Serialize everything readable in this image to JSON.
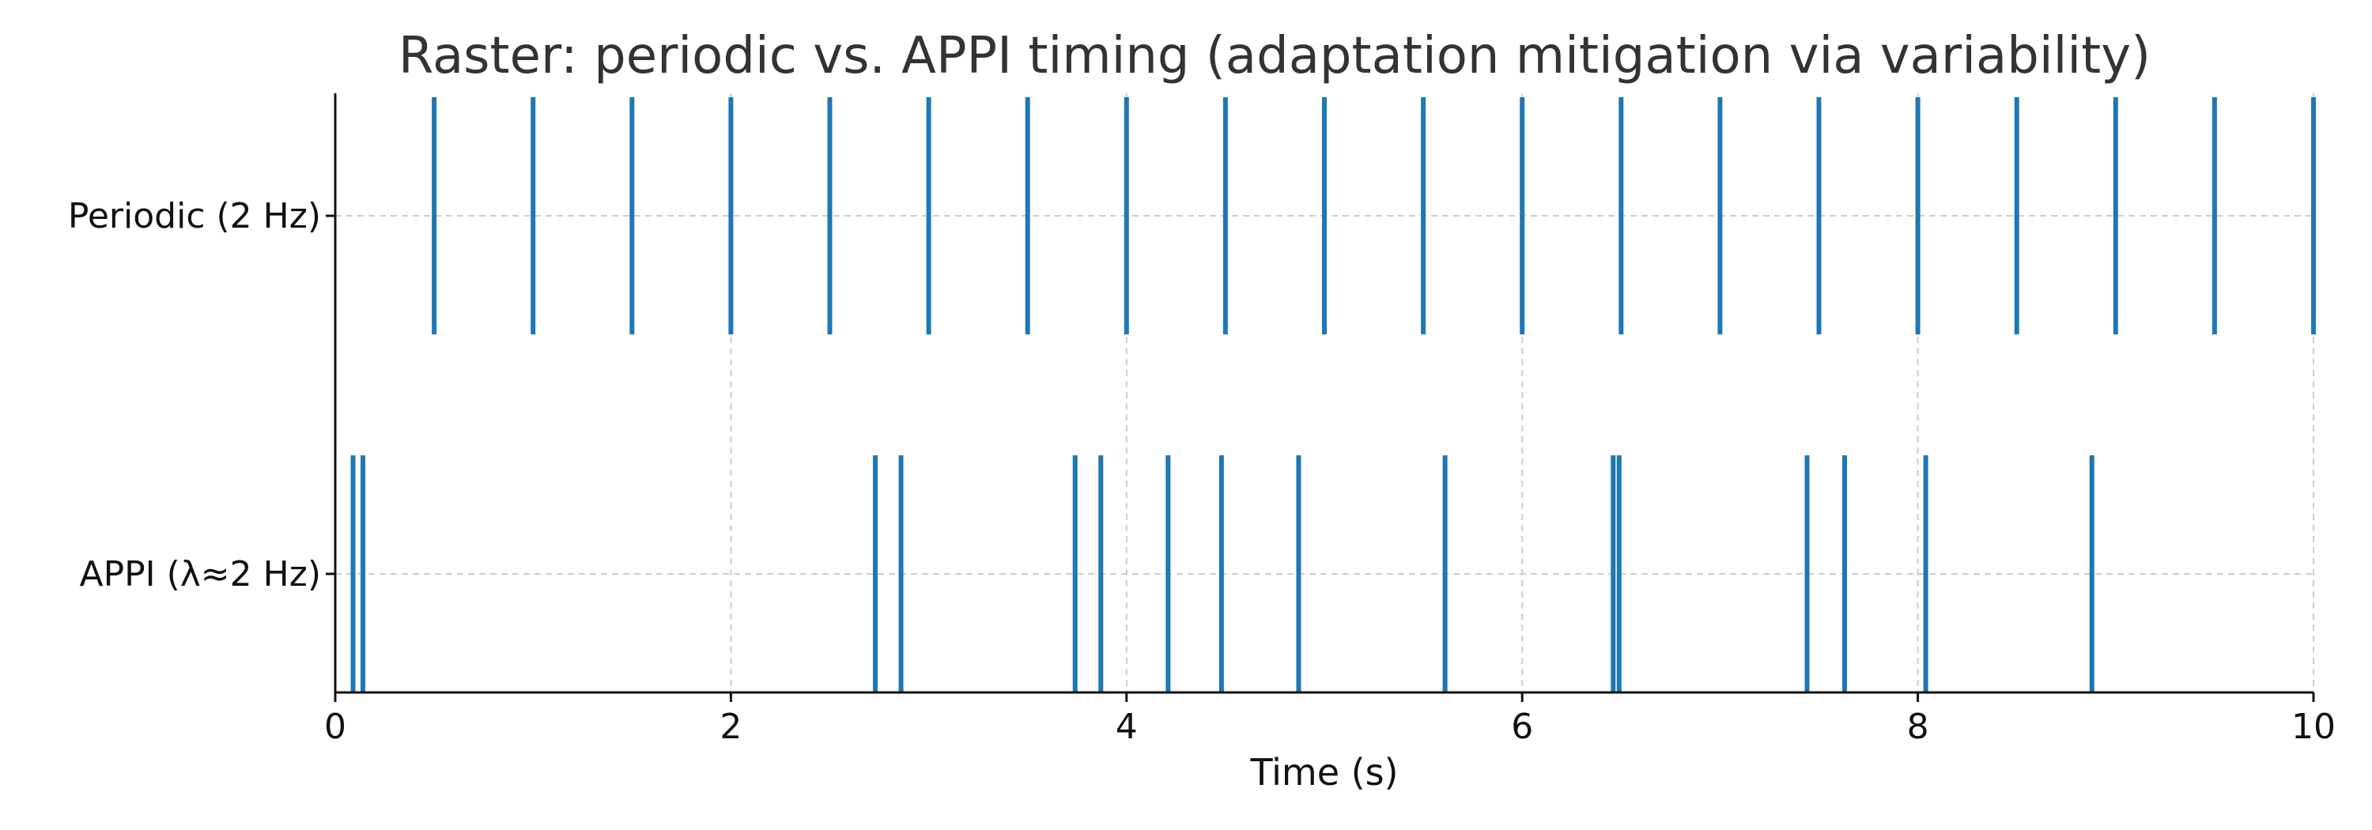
{
  "chart_data": {
    "type": "raster",
    "title": "Raster: periodic vs. APPI timing (adaptation mitigation via variability)",
    "xlabel": "Time (s)",
    "xlim": [
      0,
      10
    ],
    "xticks": [
      0,
      2,
      4,
      6,
      8,
      10
    ],
    "grid": true,
    "color": "#1f77b4",
    "rows": [
      {
        "label": "Periodic (2 Hz)",
        "events": [
          0.5,
          1.0,
          1.5,
          2.0,
          2.5,
          3.0,
          3.5,
          4.0,
          4.5,
          5.0,
          5.5,
          6.0,
          6.5,
          7.0,
          7.5,
          8.0,
          8.5,
          9.0,
          9.5,
          10.0
        ]
      },
      {
        "label": "APPI (λ≈2 Hz)",
        "events": [
          0.09,
          0.14,
          2.73,
          2.86,
          3.74,
          3.87,
          4.21,
          4.48,
          4.87,
          5.61,
          6.46,
          6.49,
          7.44,
          7.63,
          8.04,
          8.88
        ]
      }
    ]
  }
}
